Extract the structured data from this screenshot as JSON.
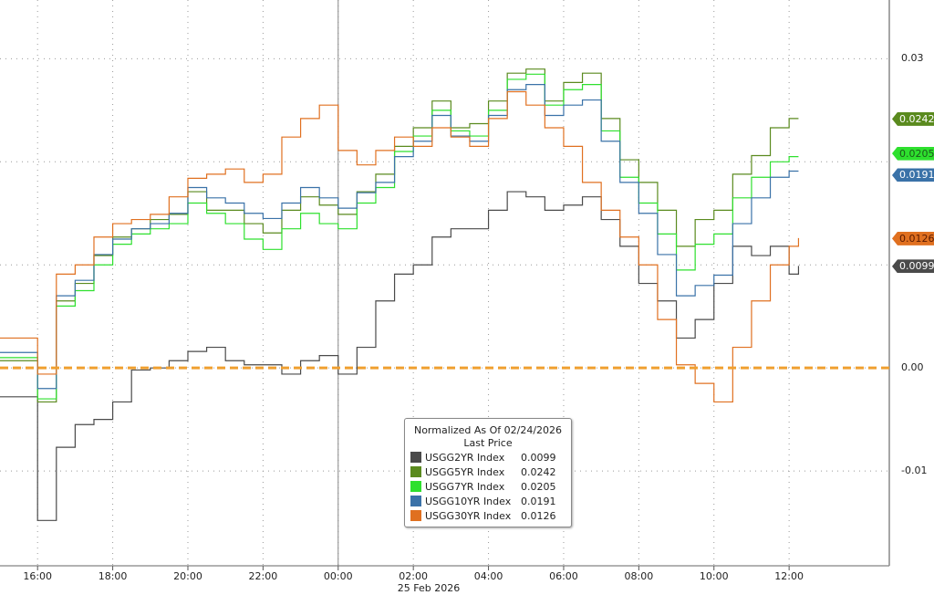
{
  "chart_data": {
    "type": "line",
    "line_shape": "step",
    "title": "Normalized As Of 02/24/2026",
    "legend_subtitle": "Last Price",
    "legend_position": "bottom-center",
    "date_label": "25 Feb 2026",
    "x_ticks": [
      "16:00",
      "18:00",
      "20:00",
      "22:00",
      "00:00",
      "02:00",
      "04:00",
      "06:00",
      "08:00",
      "10:00",
      "12:00"
    ],
    "x_tick_times": [
      "2026-02-24T16:00",
      "2026-02-24T18:00",
      "2026-02-24T20:00",
      "2026-02-24T22:00",
      "2026-02-25T00:00",
      "2026-02-25T02:00",
      "2026-02-25T04:00",
      "2026-02-25T06:00",
      "2026-02-25T08:00",
      "2026-02-25T10:00",
      "2026-02-25T12:00"
    ],
    "xlim": [
      "2026-02-24T15:00",
      "2026-02-25T14:40"
    ],
    "y_ticks": [
      "0.03",
      "0.00",
      "-0.01"
    ],
    "y_tick_values": [
      0.03,
      0.0,
      -0.01
    ],
    "y_grid_values": [
      0.03,
      0.02,
      0.01,
      0.0,
      -0.01
    ],
    "ylim": [
      -0.0192,
      0.0357
    ],
    "y_axis_side": "right",
    "grid": true,
    "zero_line_color": "#f0a030",
    "x": [
      "2026-02-24T15:00",
      "2026-02-24T16:00",
      "2026-02-24T16:30",
      "2026-02-24T17:00",
      "2026-02-24T17:30",
      "2026-02-24T18:00",
      "2026-02-24T18:30",
      "2026-02-24T19:00",
      "2026-02-24T19:30",
      "2026-02-24T20:00",
      "2026-02-24T20:30",
      "2026-02-24T21:00",
      "2026-02-24T21:30",
      "2026-02-24T22:00",
      "2026-02-24T22:30",
      "2026-02-24T23:00",
      "2026-02-24T23:30",
      "2026-02-25T00:00",
      "2026-02-25T00:30",
      "2026-02-25T01:00",
      "2026-02-25T01:30",
      "2026-02-25T02:00",
      "2026-02-25T02:30",
      "2026-02-25T03:00",
      "2026-02-25T03:30",
      "2026-02-25T04:00",
      "2026-02-25T04:30",
      "2026-02-25T05:00",
      "2026-02-25T05:30",
      "2026-02-25T06:00",
      "2026-02-25T06:30",
      "2026-02-25T07:00",
      "2026-02-25T07:30",
      "2026-02-25T08:00",
      "2026-02-25T08:30",
      "2026-02-25T09:00",
      "2026-02-25T09:30",
      "2026-02-25T10:00",
      "2026-02-25T10:30",
      "2026-02-25T11:00",
      "2026-02-25T11:30",
      "2026-02-25T12:00",
      "2026-02-25T12:15"
    ],
    "series": [
      {
        "name": "USGG2YR Index",
        "last": "0.0099",
        "color": "#4a4a4a",
        "values": [
          -0.0028,
          -0.0148,
          -0.0077,
          -0.0055,
          -0.005,
          -0.0033,
          -0.0002,
          0,
          0.0007,
          0.0016,
          0.002,
          0.0007,
          0.0003,
          0.0003,
          -0.0006,
          0.0007,
          0.0012,
          -0.0006,
          0.002,
          0.0065,
          0.0091,
          0.01,
          0.0127,
          0.0135,
          0.0135,
          0.0153,
          0.0171,
          0.0166,
          0.0153,
          0.0158,
          0.0166,
          0.0144,
          0.0118,
          0.0082,
          0.0065,
          0.0029,
          0.0047,
          0.0082,
          0.0118,
          0.0109,
          0.0118,
          0.0091,
          0.0099
        ]
      },
      {
        "name": "USGG5YR Index",
        "last": "0.0242",
        "color": "#5a8a1e",
        "values": [
          0.0007,
          -0.0033,
          0.0065,
          0.0082,
          0.0109,
          0.0127,
          0.0135,
          0.0144,
          0.0149,
          0.0171,
          0.0153,
          0.0153,
          0.014,
          0.0131,
          0.0153,
          0.0166,
          0.0158,
          0.0149,
          0.0171,
          0.0188,
          0.0215,
          0.0233,
          0.0259,
          0.0233,
          0.0237,
          0.0259,
          0.0286,
          0.029,
          0.0259,
          0.0277,
          0.0286,
          0.0242,
          0.0202,
          0.018,
          0.0153,
          0.0118,
          0.0144,
          0.0153,
          0.0188,
          0.0206,
          0.0233,
          0.0242,
          0.0242
        ]
      },
      {
        "name": "USGG7YR Index",
        "last": "0.0205",
        "color": "#2ee02e",
        "values": [
          0.001,
          -0.003,
          0.006,
          0.0075,
          0.01,
          0.012,
          0.013,
          0.0135,
          0.014,
          0.016,
          0.015,
          0.014,
          0.0125,
          0.0115,
          0.0135,
          0.015,
          0.014,
          0.0135,
          0.016,
          0.0175,
          0.021,
          0.0225,
          0.025,
          0.023,
          0.0225,
          0.025,
          0.028,
          0.0285,
          0.0255,
          0.027,
          0.0275,
          0.023,
          0.0185,
          0.016,
          0.013,
          0.0095,
          0.012,
          0.013,
          0.0165,
          0.0185,
          0.02,
          0.0205,
          0.0205
        ]
      },
      {
        "name": "USGG10YR Index",
        "last": "0.0191",
        "color": "#3a72a8",
        "values": [
          0.0015,
          -0.002,
          0.007,
          0.0085,
          0.011,
          0.0125,
          0.0135,
          0.014,
          0.015,
          0.0175,
          0.0165,
          0.016,
          0.015,
          0.0145,
          0.016,
          0.0175,
          0.0165,
          0.0155,
          0.017,
          0.018,
          0.0205,
          0.022,
          0.0245,
          0.0225,
          0.022,
          0.0245,
          0.027,
          0.0275,
          0.0245,
          0.0255,
          0.026,
          0.022,
          0.018,
          0.015,
          0.011,
          0.007,
          0.008,
          0.009,
          0.014,
          0.0165,
          0.0185,
          0.0191,
          0.0191
        ]
      },
      {
        "name": "USGG30YR Index",
        "last": "0.0126",
        "color": "#e07020",
        "values": [
          0.0029,
          -0.0006,
          0.0091,
          0.01,
          0.0127,
          0.014,
          0.0144,
          0.0149,
          0.0166,
          0.0184,
          0.0188,
          0.0193,
          0.018,
          0.0188,
          0.0224,
          0.0242,
          0.0255,
          0.0211,
          0.0197,
          0.0211,
          0.0224,
          0.0215,
          0.0233,
          0.0224,
          0.0215,
          0.0242,
          0.0268,
          0.0255,
          0.0233,
          0.0215,
          0.018,
          0.0153,
          0.0127,
          0.01,
          0.0047,
          0.0003,
          -0.0015,
          -0.0033,
          0.002,
          0.0065,
          0.01,
          0.0118,
          0.0126
        ]
      }
    ]
  }
}
